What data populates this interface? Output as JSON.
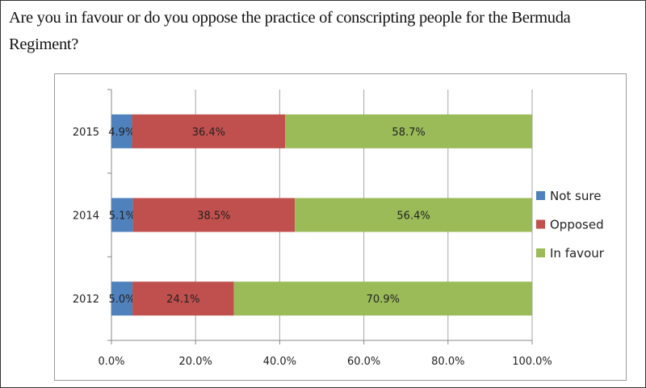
{
  "chart_data": {
    "type": "bar",
    "orientation": "horizontal",
    "stacked": true,
    "title": "Are you in favour or do you oppose the practice of conscripting people for the Bermuda Regiment?",
    "categories": [
      "2015",
      "2014",
      "2012"
    ],
    "series": [
      {
        "name": "Not sure",
        "color": "#4f81bd",
        "values": [
          4.9,
          5.1,
          5.0
        ],
        "labels": [
          "4.9%",
          "5.1%",
          "5.0%"
        ]
      },
      {
        "name": "Opposed",
        "color": "#c0504d",
        "values": [
          36.4,
          38.5,
          24.1
        ],
        "labels": [
          "36.4%",
          "38.5%",
          "24.1%"
        ]
      },
      {
        "name": "In favour",
        "color": "#9bbb59",
        "values": [
          58.7,
          56.4,
          70.9
        ],
        "labels": [
          "58.7%",
          "56.4%",
          "70.9%"
        ]
      }
    ],
    "xlim": [
      0,
      100
    ],
    "xticks": [
      "0.0%",
      "20.0%",
      "40.0%",
      "60.0%",
      "80.0%",
      "100.0%"
    ],
    "grid": true,
    "legend": "right"
  }
}
